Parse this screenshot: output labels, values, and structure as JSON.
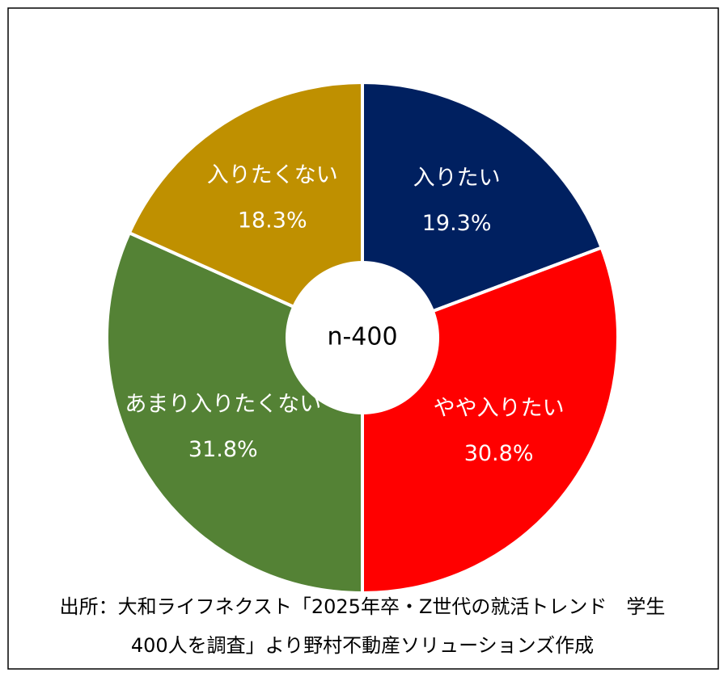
{
  "chart_data": {
    "type": "donut",
    "categories": [
      "入りたい",
      "やや入りたい",
      "あまり入りたくない",
      "入りたくない"
    ],
    "values": [
      19.3,
      30.8,
      31.8,
      18.3
    ],
    "value_labels": [
      "19.3%",
      "30.8%",
      "31.8%",
      "18.3%"
    ],
    "colors": [
      "#002060",
      "#ff0000",
      "#548235",
      "#bf9000"
    ],
    "center_label": "n-400",
    "source": [
      "出所：大和ライフネクスト「2025年卒・Z世代の就活トレンド　学生",
      "400人を調査」より野村不動産ソリューションズ作成"
    ]
  }
}
